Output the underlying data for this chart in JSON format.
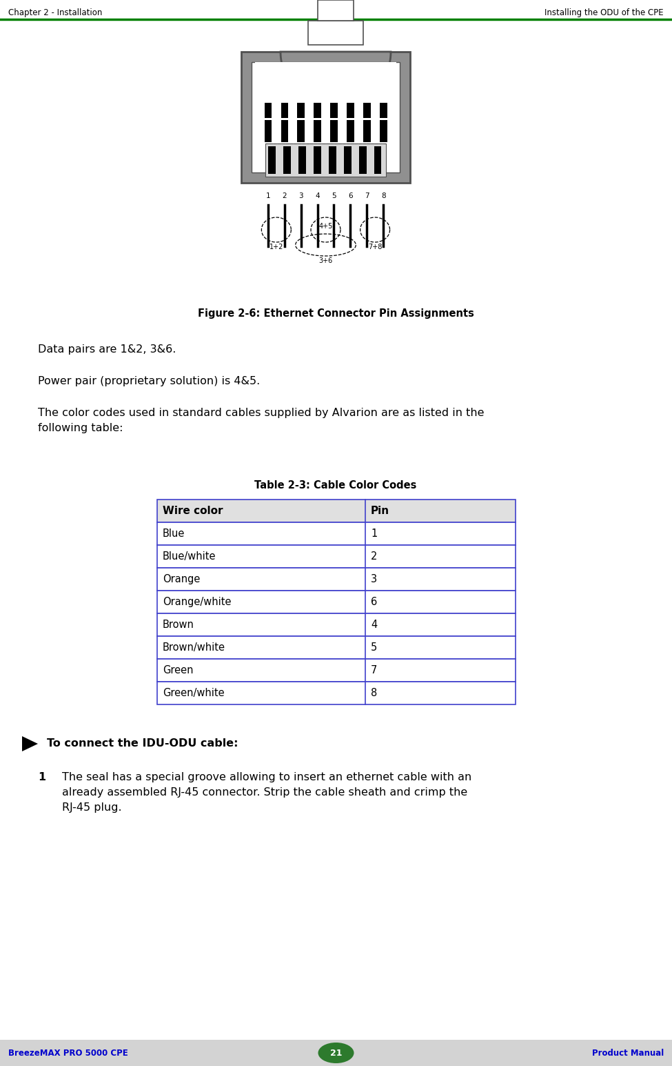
{
  "header_left": "Chapter 2 - Installation",
  "header_right": "Installing the ODU of the CPE",
  "header_line_color": "#008000",
  "footer_left": "BreezeMAX PRO 5000 CPE",
  "footer_right": "Product Manual",
  "footer_page": "21",
  "footer_bg": "#d3d3d3",
  "footer_text_color": "#0000cc",
  "footer_page_bg": "#2d7a2d",
  "figure_caption": "Figure 2-6: Ethernet Connector Pin Assignments",
  "table_title": "Table 2-3: Cable Color Codes",
  "table_header": [
    "Wire color",
    "Pin"
  ],
  "table_rows": [
    [
      "Blue",
      "1"
    ],
    [
      "Blue/white",
      "2"
    ],
    [
      "Orange",
      "3"
    ],
    [
      "Orange/white",
      "6"
    ],
    [
      "Brown",
      "4"
    ],
    [
      "Brown/white",
      "5"
    ],
    [
      "Green",
      "7"
    ],
    [
      "Green/white",
      "8"
    ]
  ],
  "table_header_bg": "#e0e0e0",
  "table_border_color": "#4040cc",
  "para1": "Data pairs are 1&2, 3&6.",
  "para2": "Power pair (proprietary solution) is 4&5.",
  "para3": "The color codes used in standard cables supplied by Alvarion are as listed in the\nfollowing table:",
  "bold_heading": "To connect the IDU-ODU cable:",
  "numbered_text": "The seal has a special groove allowing to insert an ethernet cable with an\nalready assembled RJ-45 connector. Strip the cable sheath and crimp the\nRJ-45 plug.",
  "connector_gray": "#909090",
  "connector_dark": "#505050",
  "connector_light": "#d8d8d8",
  "pin_labels": [
    "1",
    "2",
    "3",
    "4",
    "5",
    "6",
    "7",
    "8"
  ]
}
